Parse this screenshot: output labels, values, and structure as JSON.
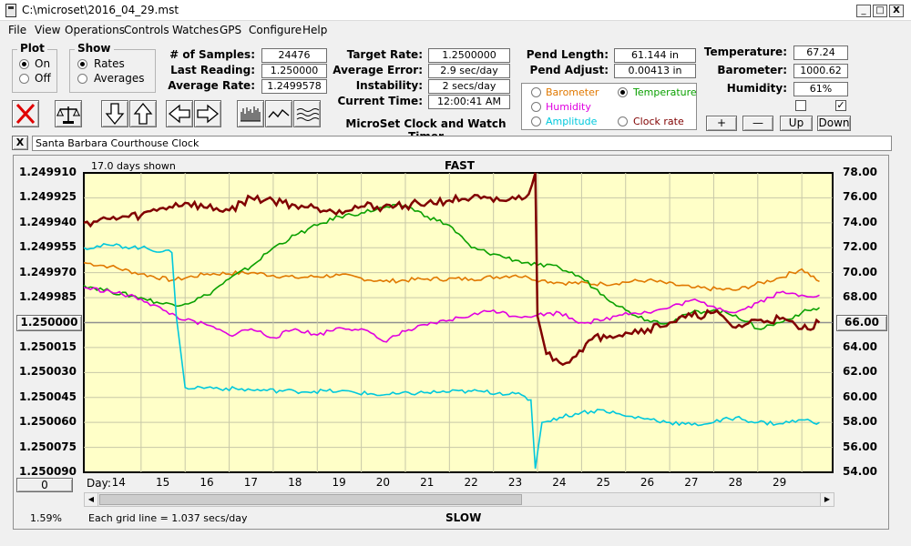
{
  "window": {
    "title": "C:\\microset\\2016_04_29.mst",
    "min_label": "_",
    "max_label": "□",
    "close_label": "X"
  },
  "menu": [
    "File",
    "View",
    "Operations",
    "Controls",
    "Watches",
    "GPS",
    "Configure",
    "Help"
  ],
  "plot_group": {
    "label": "Plot",
    "on": "On",
    "off": "Off"
  },
  "show_group": {
    "label": "Show",
    "rates": "Rates",
    "averages": "Averages"
  },
  "stats": {
    "samples_label": "# of Samples:",
    "samples": "24476",
    "last_label": "Last Reading:",
    "last": "1.250000",
    "avg_label": "Average Rate:",
    "avg": "1.2499578",
    "target_label": "Target Rate:",
    "target": "1.2500000",
    "error_label": "Average Error:",
    "error": "2.9 sec/day",
    "instab_label": "Instability:",
    "instab": "2 secs/day",
    "time_label": "Current Time:",
    "time": "12:00:41 AM",
    "pend_len_label": "Pend Length:",
    "pend_len": "61.144 in",
    "pend_adj_label": "Pend Adjust:",
    "pend_adj": "0.00413 in",
    "temp_label": "Temperature:",
    "temp": "67.24",
    "baro_label": "Barometer:",
    "baro": "1000.62",
    "hum_label": "Humidity:",
    "hum": "61%"
  },
  "app_name": "MicroSet Clock and Watch Timer",
  "sensor_options": {
    "barometer": "Barometer",
    "temperature": "Temperature",
    "humidity": "Humidity",
    "amplitude": "Amplitude",
    "clock_rate": "Clock rate",
    "colors": {
      "barometer": "#e07800",
      "temperature": "#0aa000",
      "humidity": "#e000e0",
      "amplitude": "#00c8dc",
      "clock_rate": "#800000"
    }
  },
  "adjust_buttons": {
    "plus": "+",
    "minus": "—",
    "up": "Up",
    "down": "Down"
  },
  "checkbox_right_mark": "✓",
  "notes_field": {
    "close": "X",
    "value": "Santa Barbara Courthouse Clock"
  },
  "chart": {
    "days_shown": "17.0 days shown",
    "top_label": "FAST",
    "bottom_label": "SLOW",
    "day_prefix": "Day:",
    "grid_note": "Each grid line = 1.037 secs/day",
    "percent": "1.59%",
    "center_left": "1.250000",
    "center_right": "66.00",
    "bottom_left_button": "0"
  },
  "chart_data": {
    "type": "line",
    "left_axis_ticks": [
      "1.249910",
      "1.249925",
      "1.249940",
      "1.249955",
      "1.249970",
      "1.249985",
      "1.250000",
      "1.250015",
      "1.250030",
      "1.250045",
      "1.250060",
      "1.250075",
      "1.250090"
    ],
    "right_axis_ticks": [
      "78.00",
      "76.00",
      "74.00",
      "72.00",
      "70.00",
      "68.00",
      "66.00",
      "64.00",
      "62.00",
      "60.00",
      "58.00",
      "56.00",
      "54.00"
    ],
    "x_ticks": [
      "14",
      "15",
      "16",
      "17",
      "18",
      "19",
      "20",
      "21",
      "22",
      "23",
      "24",
      "25",
      "26",
      "27",
      "28",
      "29"
    ],
    "xlim": [
      13.2,
      30.2
    ],
    "ylim_right": [
      54,
      78
    ],
    "ylim_left": [
      1.24991,
      1.25009
    ],
    "grid": true,
    "series": [
      {
        "color": "#e07800",
        "x": [
          13.2,
          13.8,
          14.5,
          15.2,
          16.0,
          17.0,
          18.0,
          19.0,
          20.0,
          21.0,
          22.0,
          23.0,
          23.3,
          23.6,
          24.0,
          25.0,
          26.0,
          27.0,
          28.0,
          29.0,
          29.5,
          29.9
        ],
        "y": [
          70.8,
          70.5,
          69.9,
          69.4,
          69.9,
          70.0,
          69.6,
          69.8,
          69.3,
          69.5,
          69.5,
          69.8,
          69.6,
          69.4,
          69.2,
          69.1,
          69.4,
          68.8,
          68.6,
          69.6,
          70.3,
          69.3
        ]
      },
      {
        "color": "#0aa000",
        "x": [
          13.2,
          13.8,
          14.5,
          15.0,
          15.5,
          16.0,
          16.5,
          17.0,
          17.5,
          18.0,
          18.5,
          19.0,
          19.5,
          20.0,
          20.5,
          21.0,
          21.5,
          22.0,
          22.5,
          23.0,
          23.5,
          24.0,
          24.5,
          25.0,
          25.5,
          26.0,
          26.5,
          27.0,
          27.5,
          28.0,
          28.5,
          29.0,
          29.5,
          29.9
        ],
        "y": [
          69.0,
          68.5,
          68.0,
          67.5,
          67.5,
          68.2,
          69.5,
          70.5,
          72.0,
          73.0,
          73.8,
          74.5,
          74.8,
          75.2,
          75.4,
          74.5,
          73.8,
          72.0,
          71.5,
          71.0,
          70.6,
          70.4,
          69.6,
          68.2,
          67.0,
          66.2,
          66.0,
          66.8,
          67.0,
          66.6,
          65.5,
          66.0,
          66.8,
          67.2
        ]
      },
      {
        "color": "#e000e0",
        "x": [
          13.2,
          13.8,
          14.5,
          15.0,
          15.5,
          16.0,
          16.5,
          17.0,
          17.5,
          18.0,
          18.5,
          19.0,
          19.5,
          20.0,
          20.5,
          21.0,
          21.5,
          22.0,
          22.5,
          23.0,
          23.5,
          24.0,
          24.5,
          25.0,
          25.5,
          26.0,
          26.5,
          27.0,
          27.5,
          28.0,
          28.5,
          29.0,
          29.5,
          29.9
        ],
        "y": [
          68.8,
          68.5,
          67.9,
          67.0,
          66.2,
          65.8,
          65.0,
          65.5,
          64.8,
          65.5,
          65.0,
          65.6,
          65.5,
          64.5,
          65.3,
          65.8,
          66.2,
          66.6,
          67.0,
          66.5,
          66.6,
          66.8,
          66.0,
          66.2,
          66.8,
          66.8,
          67.2,
          67.8,
          67.3,
          66.8,
          67.6,
          68.4,
          68.2,
          68.2
        ]
      },
      {
        "color": "#00c8dc",
        "x": [
          13.2,
          13.8,
          14.5,
          15.2,
          15.3,
          15.5,
          16.0,
          17.0,
          18.0,
          19.0,
          20.0,
          21.0,
          22.0,
          23.0,
          23.35,
          23.45,
          23.6,
          24.0,
          24.5,
          25.0,
          25.5,
          26.0,
          26.5,
          27.0,
          27.5,
          28.0,
          28.5,
          29.0,
          29.5,
          29.9
        ],
        "y": [
          72.0,
          72.2,
          72.0,
          71.6,
          66.5,
          60.8,
          60.8,
          60.6,
          60.5,
          60.5,
          60.2,
          60.4,
          60.5,
          60.3,
          59.8,
          54.3,
          58.0,
          58.4,
          58.8,
          59.0,
          58.5,
          58.3,
          58.0,
          57.8,
          58.0,
          58.4,
          58.0,
          57.9,
          58.2,
          58.0
        ]
      },
      {
        "color": "#800000",
        "x": [
          13.2,
          13.8,
          14.5,
          15.0,
          15.5,
          16.0,
          16.5,
          17.0,
          17.5,
          18.0,
          18.5,
          19.0,
          19.5,
          20.0,
          20.5,
          21.0,
          21.5,
          22.0,
          22.5,
          23.0,
          23.3,
          23.45,
          23.5,
          23.7,
          24.0,
          24.3,
          24.6,
          25.0,
          25.5,
          26.0,
          26.5,
          27.0,
          27.5,
          28.0,
          28.5,
          29.0,
          29.5,
          29.9
        ],
        "y": [
          74.0,
          74.3,
          74.6,
          75.2,
          75.6,
          75.2,
          75.0,
          76.0,
          75.8,
          75.4,
          75.2,
          75.0,
          75.3,
          75.3,
          75.4,
          75.6,
          75.8,
          76.0,
          75.7,
          75.9,
          76.3,
          78.0,
          66.5,
          63.5,
          62.8,
          63.2,
          64.3,
          65.0,
          65.2,
          65.5,
          66.0,
          66.5,
          66.8,
          65.6,
          66.2,
          66.3,
          65.5,
          66.0
        ]
      }
    ]
  }
}
